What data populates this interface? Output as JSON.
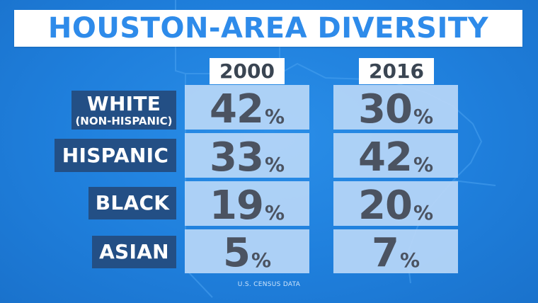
{
  "title": "HOUSTON-AREA DIVERSITY",
  "source": "U.S. CENSUS DATA",
  "chart_data": {
    "type": "table",
    "title": "HOUSTON-AREA DIVERSITY",
    "columns": [
      "2000",
      "2016"
    ],
    "rows": [
      {
        "label": "WHITE",
        "sublabel": "(NON-HISPANIC)",
        "values": [
          "42",
          "30"
        ]
      },
      {
        "label": "HISPANIC",
        "sublabel": "",
        "values": [
          "33",
          "42"
        ]
      },
      {
        "label": "BLACK",
        "sublabel": "",
        "values": [
          "19",
          "20"
        ]
      },
      {
        "label": "ASIAN",
        "sublabel": "",
        "values": [
          "5",
          "7"
        ]
      }
    ],
    "unit": "%"
  },
  "colors": {
    "background": "#1f7fdc",
    "title_text": "#2e8bea",
    "label_bg": "#234f85",
    "cell_bg": "#b7d6f8",
    "value_text": "#4b5361"
  }
}
